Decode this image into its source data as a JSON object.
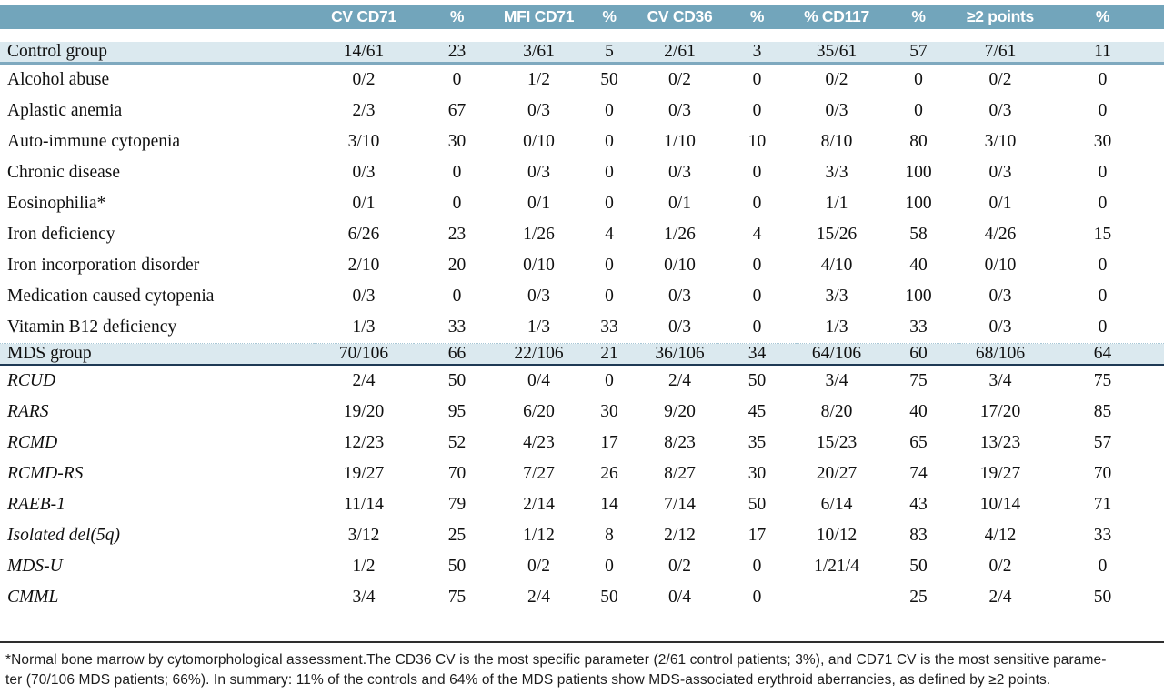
{
  "table": {
    "columns": [
      "",
      "CV CD71",
      "%",
      "MFI CD71",
      "%",
      "CV CD36",
      "%",
      "% CD117",
      "%",
      "≥2 points",
      "%"
    ],
    "rows": [
      {
        "label": "Control group",
        "style": "control",
        "values": [
          "14/61",
          "23",
          "3/61",
          "5",
          "2/61",
          "3",
          "35/61",
          "57",
          "7/61",
          "11"
        ]
      },
      {
        "label": "Alcohol abuse",
        "style": "normal",
        "values": [
          "0/2",
          "0",
          "1/2",
          "50",
          "0/2",
          "0",
          "0/2",
          "0",
          "0/2",
          "0"
        ]
      },
      {
        "label": "Aplastic anemia",
        "style": "normal",
        "values": [
          "2/3",
          "67",
          "0/3",
          "0",
          "0/3",
          "0",
          "0/3",
          "0",
          "0/3",
          "0"
        ]
      },
      {
        "label": "Auto-immune cytopenia",
        "style": "normal",
        "values": [
          "3/10",
          "30",
          "0/10",
          "0",
          "1/10",
          "10",
          "8/10",
          "80",
          "3/10",
          "30"
        ]
      },
      {
        "label": "Chronic disease",
        "style": "normal",
        "values": [
          "0/3",
          "0",
          "0/3",
          "0",
          "0/3",
          "0",
          "3/3",
          "100",
          "0/3",
          "0"
        ]
      },
      {
        "label": "Eosinophilia*",
        "style": "normal",
        "values": [
          "0/1",
          "0",
          "0/1",
          "0",
          "0/1",
          "0",
          "1/1",
          "100",
          "0/1",
          "0"
        ]
      },
      {
        "label": "Iron deficiency",
        "style": "normal",
        "values": [
          "6/26",
          "23",
          "1/26",
          "4",
          "1/26",
          "4",
          "15/26",
          "58",
          "4/26",
          "15"
        ]
      },
      {
        "label": "Iron incorporation disorder",
        "style": "normal",
        "values": [
          "2/10",
          "20",
          "0/10",
          "0",
          "0/10",
          "0",
          "4/10",
          "40",
          "0/10",
          "0"
        ]
      },
      {
        "label": "Medication caused cytopenia",
        "style": "normal",
        "values": [
          "0/3",
          "0",
          "0/3",
          "0",
          "0/3",
          "0",
          "3/3",
          "100",
          "0/3",
          "0"
        ]
      },
      {
        "label": "Vitamin B12 deficiency",
        "style": "normal",
        "values": [
          "1/3",
          "33",
          "1/3",
          "33",
          "0/3",
          "0",
          "1/3",
          "33",
          "0/3",
          "0"
        ]
      },
      {
        "label": "MDS group",
        "style": "mds",
        "values": [
          "70/106",
          "66",
          "22/106",
          "21",
          "36/106",
          "34",
          "64/106",
          "60",
          "68/106",
          "64"
        ]
      },
      {
        "label": "RCUD",
        "style": "italic",
        "values": [
          "2/4",
          "50",
          "0/4",
          "0",
          "2/4",
          "50",
          "3/4",
          "75",
          "3/4",
          "75"
        ]
      },
      {
        "label": "RARS",
        "style": "italic",
        "values": [
          "19/20",
          "95",
          "6/20",
          "30",
          "9/20",
          "45",
          "8/20",
          "40",
          "17/20",
          "85"
        ]
      },
      {
        "label": "RCMD",
        "style": "italic",
        "values": [
          "12/23",
          "52",
          "4/23",
          "17",
          "8/23",
          "35",
          "15/23",
          "65",
          "13/23",
          "57"
        ]
      },
      {
        "label": "RCMD-RS",
        "style": "italic",
        "values": [
          "19/27",
          "70",
          "7/27",
          "26",
          "8/27",
          "30",
          "20/27",
          "74",
          "19/27",
          "70"
        ]
      },
      {
        "label": "RAEB-1",
        "style": "italic",
        "values": [
          "11/14",
          "79",
          "2/14",
          "14",
          "7/14",
          "50",
          "6/14",
          "43",
          "10/14",
          "71"
        ]
      },
      {
        "label": "Isolated del(5q)",
        "style": "italic",
        "values": [
          "3/12",
          "25",
          "1/12",
          "8",
          "2/12",
          "17",
          "10/12",
          "83",
          "4/12",
          "33"
        ]
      },
      {
        "label": "MDS-U",
        "style": "italic",
        "values": [
          "1/2",
          "50",
          "0/2",
          "0",
          "0/2",
          "0",
          "1/21/4",
          "50",
          "0/2",
          "0"
        ]
      },
      {
        "label": "CMML",
        "style": "italic",
        "values": [
          "3/4",
          "75",
          "2/4",
          "50",
          "0/4",
          "0",
          "",
          "25",
          "2/4",
          "50"
        ]
      }
    ]
  },
  "footnote": {
    "lines": [
      "*Normal bone marrow by cytomorphological assessment.The CD36 CV is the most specific parameter (2/61 control patients; 3%), and CD71 CV is the most sensitive parame-",
      "ter (70/106 MDS patients; 66%). In summary: 11% of the controls and 64% of the MDS patients show MDS-associated erythroid aberrancies, as defined by ≥2 points."
    ]
  },
  "colors": {
    "header_bg": "#72A5BB",
    "band_bg": "#DBE9EF",
    "control_divider": "#7FA9BF",
    "mds_divider": "#1F3A55",
    "footnote_rule": "#2E2E2E"
  }
}
